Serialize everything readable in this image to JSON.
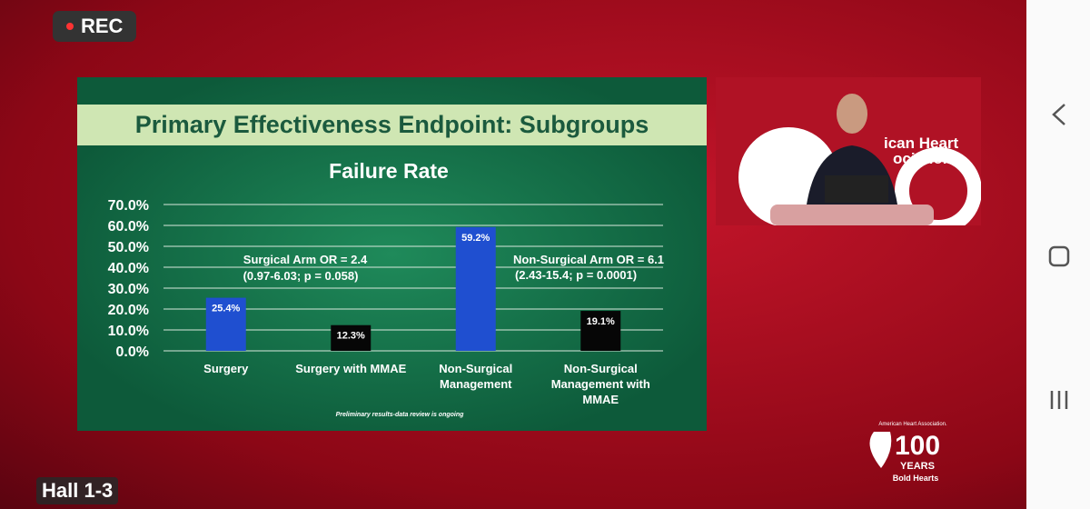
{
  "ui": {
    "rec": "REC",
    "hall": "Hall 1-3",
    "stage_sign": [
      "ican Heart",
      "ociation."
    ],
    "logo": {
      "org": "American Heart Association.",
      "number": "100",
      "years": "YEARS",
      "tagline": "Bold Hearts"
    }
  },
  "slide": {
    "title": "Primary Effectiveness Endpoint: Subgroups",
    "footnote": "Preliminary results-data review is ongoing"
  },
  "chart_data": {
    "type": "bar",
    "title": "Failure Rate",
    "categories": [
      "Surgery",
      "Surgery with MMAE",
      "Non-Surgical Management",
      "Non-Surgical Management with MMAE"
    ],
    "values": [
      25.4,
      12.3,
      59.2,
      19.1
    ],
    "value_labels": [
      "25.4%",
      "12.3%",
      "59.2%",
      "19.1%"
    ],
    "colors": [
      "#1f4fd0",
      "#060606",
      "#1f4fd0",
      "#060606"
    ],
    "ylim": [
      0,
      70
    ],
    "yticks": [
      {
        "value": 0,
        "label": "0.0%"
      },
      {
        "value": 10,
        "label": "10.0%"
      },
      {
        "value": 20,
        "label": "20.0%"
      },
      {
        "value": 30,
        "label": "30.0%"
      },
      {
        "value": 40,
        "label": "40.0%"
      },
      {
        "value": 50,
        "label": "50.0%"
      },
      {
        "value": 60,
        "label": "60.0%"
      },
      {
        "value": 70,
        "label": "70.0%"
      }
    ],
    "grid": true,
    "annotations": [
      "Surgical Arm OR = 2.4",
      "(0.97-6.03; p = 0.058)",
      "Non-Surgical Arm OR = 6.1",
      "(2.43-15.4; p = 0.0001)"
    ]
  }
}
